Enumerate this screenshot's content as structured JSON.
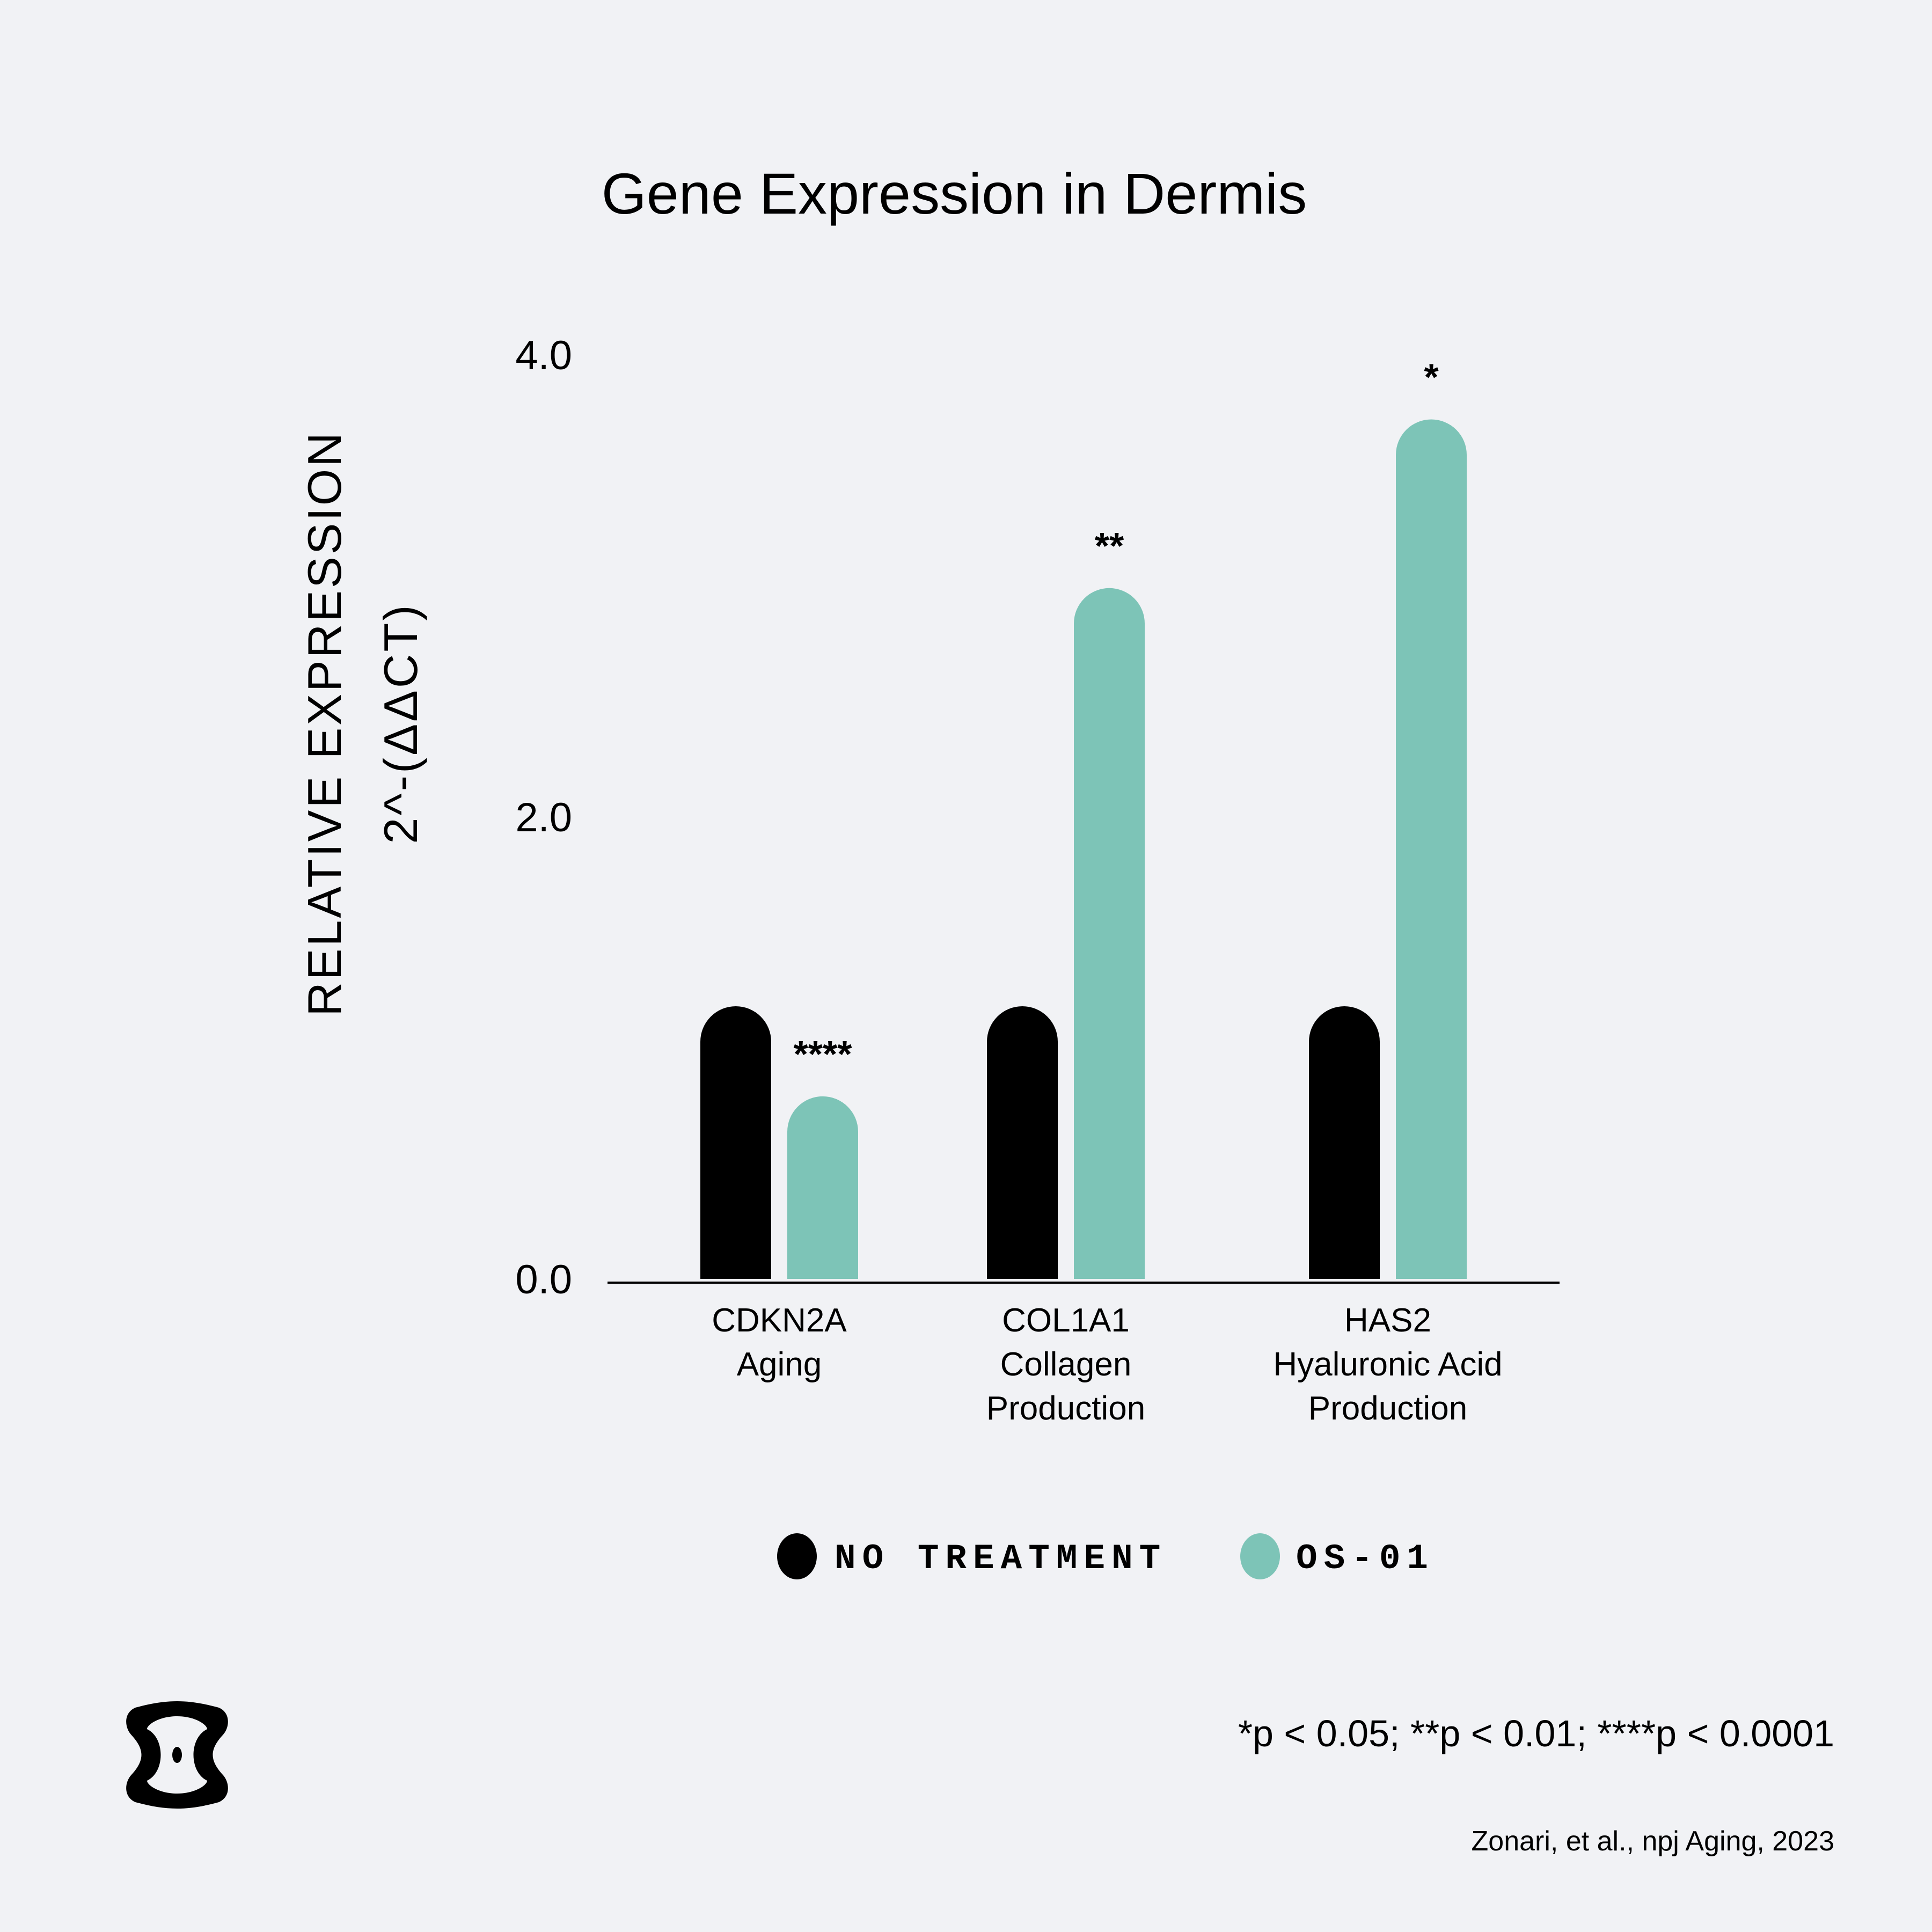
{
  "chart_data": {
    "type": "bar",
    "title": "Gene Expression in Dermis",
    "ylabel": "RELATIVE EXPRESSION",
    "ylabel_sub": "2^-(ΔΔCT)",
    "ylim": [
      0,
      4
    ],
    "yticks": [
      "0.0",
      "2.0",
      "4.0"
    ],
    "yticks_values": [
      0,
      2,
      4
    ],
    "categories": [
      [
        "CDKN2A",
        "Aging"
      ],
      [
        "COL1A1",
        "Collagen",
        "Production"
      ],
      [
        "HAS2",
        "Hyaluronic Acid",
        "Production"
      ]
    ],
    "series": [
      {
        "name": "NO TREATMENT",
        "color": "#000000",
        "values": [
          1.18,
          1.18,
          1.18
        ]
      },
      {
        "name": "OS-01",
        "color": "#7dc4b7",
        "values": [
          0.79,
          2.99,
          3.72
        ]
      }
    ],
    "significance": [
      "****",
      "**",
      "*"
    ],
    "legend_position": "bottom-center",
    "grid": false
  },
  "footer": {
    "significance_note": "*p < 0.05; **p < 0.01; ****p < 0.0001",
    "citation": "Zonari, et al., npj Aging, 2023"
  },
  "logo": {
    "icon": "brand-logo-icon",
    "color": "#000000"
  }
}
